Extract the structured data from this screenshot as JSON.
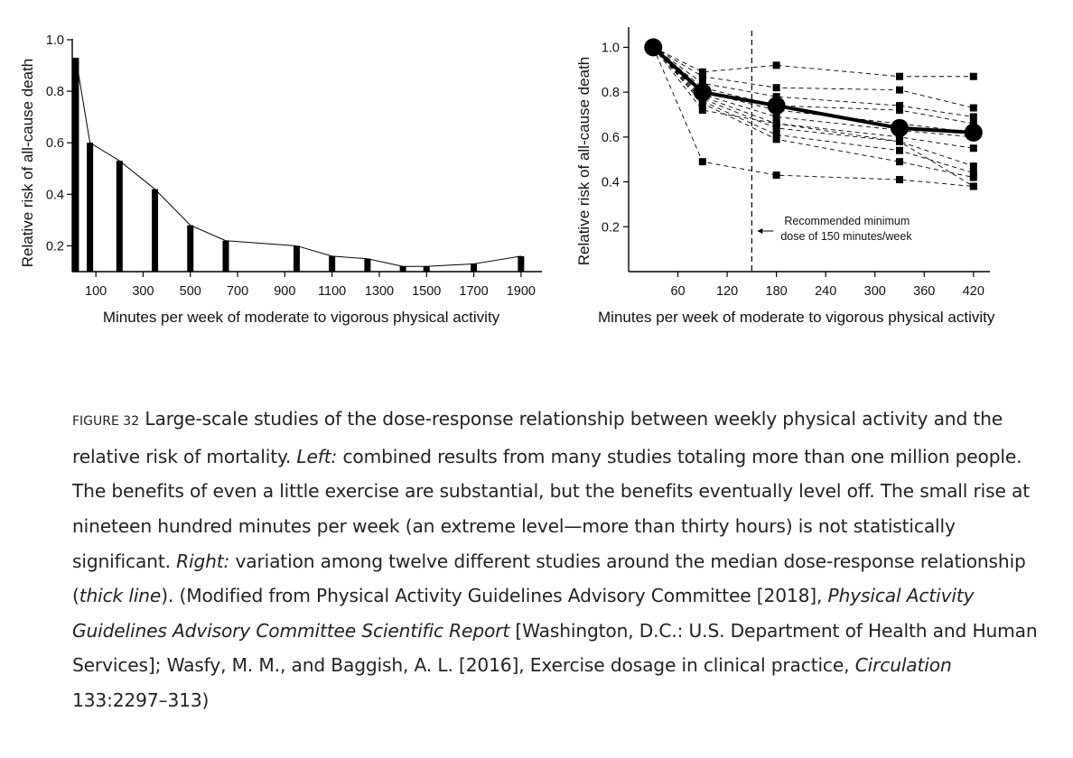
{
  "chart_data": [
    {
      "type": "bar",
      "xlabel": "Minutes per week of moderate to vigorous physical activity",
      "ylabel": "Relative risk of all-cause death",
      "ylim": [
        0.1,
        1.0
      ],
      "xlim": [
        0,
        2000
      ],
      "x_ticks": [
        100,
        300,
        500,
        700,
        900,
        1100,
        1300,
        1500,
        1700,
        1900
      ],
      "y_ticks": [
        0.2,
        0.4,
        0.6,
        0.8,
        1.0
      ],
      "y_tick_labels": [
        "0.2",
        "0.4",
        "0.6",
        "0.8",
        "1.0"
      ],
      "x": [
        15,
        75,
        200,
        350,
        500,
        650,
        950,
        1100,
        1250,
        1400,
        1500,
        1700,
        1900
      ],
      "values": [
        0.93,
        0.6,
        0.53,
        0.42,
        0.28,
        0.22,
        0.2,
        0.16,
        0.15,
        0.12,
        0.12,
        0.13,
        0.16
      ],
      "grid": false
    },
    {
      "type": "line",
      "xlabel": "Minutes per week of moderate to vigorous physical activity",
      "ylabel": "Relative risk of all-cause death",
      "ylim": [
        0,
        1.05
      ],
      "xlim": [
        0,
        440
      ],
      "x_ticks": [
        60,
        120,
        180,
        240,
        300,
        360,
        420
      ],
      "y_ticks": [
        0.2,
        0.4,
        0.6,
        0.8,
        1.0
      ],
      "y_tick_labels": [
        "0.2",
        "0.4",
        "0.6",
        "0.8",
        "1.0"
      ],
      "median": {
        "x": [
          30,
          90,
          180,
          330,
          420
        ],
        "y": [
          1.0,
          0.8,
          0.74,
          0.64,
          0.62
        ]
      },
      "studies": [
        {
          "x": [
            30,
            90,
            180,
            330,
            420
          ],
          "y": [
            1.0,
            0.89,
            0.92,
            0.87,
            0.87
          ]
        },
        {
          "x": [
            30,
            90,
            180,
            330,
            420
          ],
          "y": [
            1.0,
            0.87,
            0.82,
            0.81,
            0.73
          ]
        },
        {
          "x": [
            30,
            90,
            180,
            330,
            420
          ],
          "y": [
            1.0,
            0.84,
            0.78,
            0.74,
            0.69
          ]
        },
        {
          "x": [
            30,
            90,
            180,
            330,
            420
          ],
          "y": [
            1.0,
            0.82,
            0.74,
            0.72,
            0.66
          ]
        },
        {
          "x": [
            30,
            90,
            180,
            330,
            420
          ],
          "y": [
            1.0,
            0.8,
            0.72,
            0.66,
            0.62
          ]
        },
        {
          "x": [
            30,
            90,
            180,
            330,
            420
          ],
          "y": [
            1.0,
            0.79,
            0.69,
            0.63,
            0.6
          ]
        },
        {
          "x": [
            30,
            90,
            180,
            330,
            420
          ],
          "y": [
            1.0,
            0.78,
            0.66,
            0.6,
            0.55
          ]
        },
        {
          "x": [
            30,
            90,
            180,
            330,
            420
          ],
          "y": [
            1.0,
            0.77,
            0.64,
            0.58,
            0.47
          ]
        },
        {
          "x": [
            30,
            90,
            180,
            330,
            420
          ],
          "y": [
            1.0,
            0.76,
            0.61,
            0.54,
            0.44
          ]
        },
        {
          "x": [
            30,
            90,
            180,
            330,
            420
          ],
          "y": [
            1.0,
            0.75,
            0.59,
            0.49,
            0.42
          ]
        },
        {
          "x": [
            30,
            90,
            180,
            330,
            420
          ],
          "y": [
            1.0,
            0.72,
            0.66,
            0.58,
            0.38
          ]
        },
        {
          "x": [
            30,
            90,
            180,
            330,
            420
          ],
          "y": [
            1.0,
            0.49,
            0.43,
            0.41,
            0.38
          ]
        }
      ],
      "reference_line": {
        "x": 150
      },
      "annotations": [
        "Recommended minimum",
        "dose of 150 minutes/week"
      ],
      "grid": false
    }
  ],
  "caption": {
    "figure_number": "FIGURE 32",
    "segments": [
      {
        "t": " Large-scale studies of the dose-response relationship between weekly physical activity and the relative risk of mortality. ",
        "i": false
      },
      {
        "t": "Left:",
        "i": true
      },
      {
        "t": " combined results from many studies totaling more than one million people. The benefits of even a little exercise are substantial, but the benefits eventually level off. The small rise at nineteen hundred minutes per week (an extreme level—more than thirty hours) is not statistically significant. ",
        "i": false
      },
      {
        "t": "Right:",
        "i": true
      },
      {
        "t": " variation among twelve different studies around the median dose-response relationship (",
        "i": false
      },
      {
        "t": "thick line",
        "i": true
      },
      {
        "t": "). (Modified from Physical Activity Guidelines Advisory Committee [2018], ",
        "i": false
      },
      {
        "t": "Physical Activity Guidelines Advisory Committee Scientific Report",
        "i": true
      },
      {
        "t": " [Washington, D.C.: U.S. Department of Health and Human Services]; Wasfy, M. M., and Baggish, A. L. [2016], Exercise dosage in clinical practice, ",
        "i": false
      },
      {
        "t": "Circulation",
        "i": true
      },
      {
        "t": " 133:2297–313)",
        "i": false
      }
    ]
  }
}
